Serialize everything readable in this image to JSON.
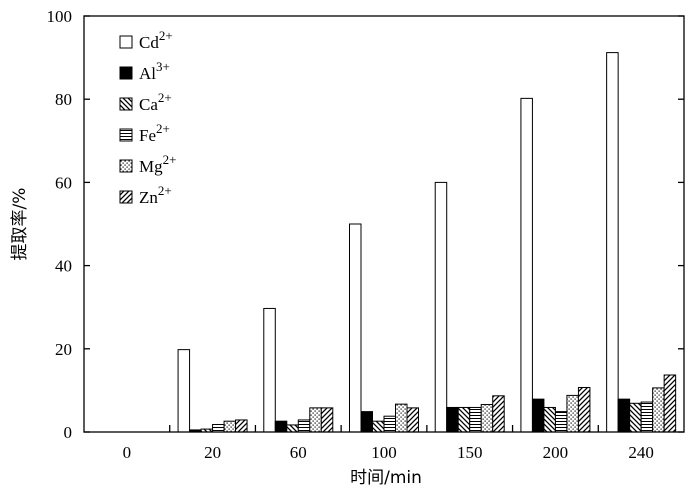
{
  "chart_data": {
    "type": "bar",
    "xlabel": "时间/min",
    "ylabel": "提取率/%",
    "ylim": [
      0,
      100
    ],
    "yticks": [
      "0",
      "20",
      "40",
      "60",
      "80",
      "100"
    ],
    "categories": [
      "0",
      "20",
      "60",
      "100",
      "150",
      "200",
      "240"
    ],
    "legend_position": "top-left",
    "grid": false,
    "series": [
      {
        "name": "Cd",
        "charge": "2+",
        "pattern": "white",
        "values": [
          0,
          19.8,
          29.7,
          50.0,
          60.0,
          80.2,
          91.2
        ]
      },
      {
        "name": "Al",
        "charge": "3+",
        "pattern": "black",
        "values": [
          0,
          0.5,
          2.6,
          4.9,
          5.9,
          7.9,
          7.9
        ]
      },
      {
        "name": "Ca",
        "charge": "2+",
        "pattern": "backslash",
        "values": [
          0,
          0.7,
          1.7,
          2.6,
          5.9,
          5.9,
          6.9
        ]
      },
      {
        "name": "Fe",
        "charge": "2+",
        "pattern": "hlines",
        "values": [
          0,
          1.8,
          2.9,
          3.8,
          5.9,
          4.9,
          7.2
        ]
      },
      {
        "name": "Mg",
        "charge": "2+",
        "pattern": "dots",
        "values": [
          0,
          2.6,
          5.8,
          6.7,
          6.6,
          8.8,
          10.6
        ]
      },
      {
        "name": "Zn",
        "charge": "2+",
        "pattern": "slash",
        "values": [
          0,
          2.9,
          5.8,
          5.8,
          8.7,
          10.7,
          13.7
        ]
      }
    ]
  }
}
